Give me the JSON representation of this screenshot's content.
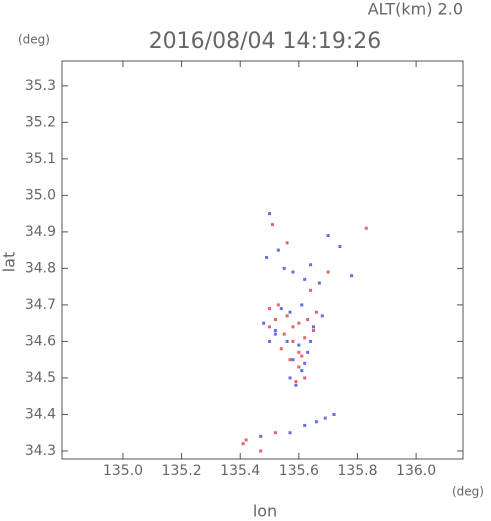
{
  "chart_data": {
    "type": "scatter",
    "title": "2016/08/04 14:19:26",
    "subtitle": "ALT(km) 2.0",
    "y_unit": "(deg)",
    "x_unit": "(deg)",
    "x_label": "lon",
    "y_label": "lat",
    "xlim": [
      134.792,
      136.16
    ],
    "ylim": [
      34.278,
      35.368
    ],
    "xticks": [
      {
        "value": 135.0,
        "label": "135.0"
      },
      135.2,
      135.4,
      135.6,
      135.8,
      {
        "value": 136.0,
        "label": "136.0"
      }
    ],
    "yticks": [
      34.3,
      34.4,
      34.5,
      34.6,
      34.7,
      34.8,
      34.9,
      {
        "value": 35.0,
        "label": "35.0"
      },
      35.1,
      35.2,
      35.3
    ],
    "series": [
      {
        "color": "#e8606a",
        "x": [
          135.52,
          135.56,
          135.6,
          135.63,
          135.66,
          135.55,
          135.58,
          135.62,
          135.57,
          135.6,
          135.59,
          135.62,
          135.54,
          135.65,
          135.5,
          135.53,
          135.58,
          135.6,
          135.42,
          135.41,
          135.47,
          135.52,
          135.83,
          135.51,
          135.7,
          135.56,
          135.64,
          135.61,
          135.5
        ],
        "y": [
          34.66,
          34.67,
          34.65,
          34.66,
          34.68,
          34.62,
          34.6,
          34.61,
          34.55,
          34.53,
          34.49,
          34.5,
          34.58,
          34.63,
          34.69,
          34.7,
          34.64,
          34.57,
          34.33,
          34.32,
          34.3,
          34.35,
          34.91,
          34.92,
          34.79,
          34.87,
          34.74,
          34.56,
          34.64
        ]
      },
      {
        "color": "#6070e0",
        "x": [
          135.54,
          135.57,
          135.61,
          135.65,
          135.68,
          135.48,
          135.52,
          135.56,
          135.6,
          135.63,
          135.58,
          135.61,
          135.57,
          135.59,
          135.62,
          135.64,
          135.5,
          135.49,
          135.53,
          135.55,
          135.58,
          135.62,
          135.64,
          135.67,
          135.78,
          135.74,
          135.7,
          135.5,
          135.57,
          135.62,
          135.66,
          135.69,
          135.72,
          135.47,
          135.52
        ],
        "y": [
          34.69,
          34.68,
          34.7,
          34.64,
          34.67,
          34.65,
          34.63,
          34.6,
          34.59,
          34.57,
          34.55,
          34.52,
          34.5,
          34.48,
          34.54,
          34.6,
          34.6,
          34.83,
          34.85,
          34.8,
          34.79,
          34.77,
          34.81,
          34.76,
          34.78,
          34.86,
          34.89,
          34.95,
          34.35,
          34.37,
          34.38,
          34.39,
          34.4,
          34.34,
          34.62
        ]
      }
    ]
  }
}
